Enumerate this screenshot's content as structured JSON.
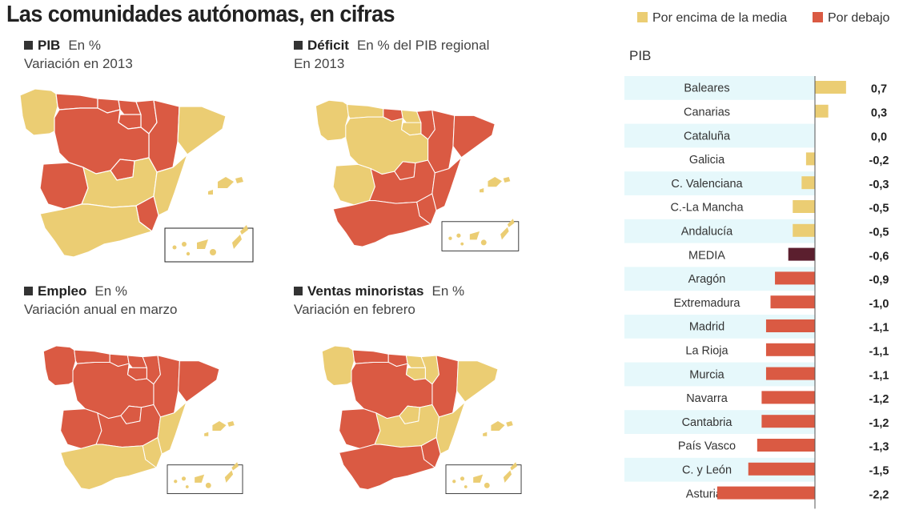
{
  "title": "Las comunidades autónomas, en cifras",
  "legend": {
    "above_label": "Por encima de la media",
    "below_label": "Por debajo",
    "above_color": "#ebcd73",
    "below_color": "#da5a43"
  },
  "panels": [
    {
      "name": "PIB",
      "unit": "En %",
      "subtitle": "Variación en 2013"
    },
    {
      "name": "Déficit",
      "unit": "En % del PIB regional",
      "subtitle": "En 2013"
    },
    {
      "name": "Empleo",
      "unit": "En %",
      "subtitle": "Variación anual en marzo"
    },
    {
      "name": "Ventas minoristas",
      "unit": "En %",
      "subtitle": "Variación en febrero"
    }
  ],
  "chart_data": {
    "type": "bar",
    "orientation": "horizontal",
    "title": "PIB",
    "categories": [
      "Baleares",
      "Canarias",
      "Cataluña",
      "Galicia",
      "C. Valenciana",
      "C.-La Mancha",
      "Andalucía",
      "MEDIA",
      "Aragón",
      "Extremadura",
      "Madrid",
      "La Rioja",
      "Murcia",
      "Navarra",
      "Cantabria",
      "País Vasco",
      "C. y León",
      "Asturias"
    ],
    "values": [
      0.7,
      0.3,
      0.0,
      -0.2,
      -0.3,
      -0.5,
      -0.5,
      -0.6,
      -0.9,
      -1.0,
      -1.1,
      -1.1,
      -1.1,
      -1.2,
      -1.2,
      -1.3,
      -1.5,
      -2.2
    ],
    "value_labels": [
      "0,7",
      "0,3",
      "0,0",
      "-0,2",
      "-0,3",
      "-0,5",
      "-0,5",
      "-0,6",
      "-0,9",
      "-1,0",
      "-1,1",
      "-1,1",
      "-1,1",
      "-1,2",
      "-1,2",
      "-1,3",
      "-1,5",
      "-2,2"
    ],
    "highlight": "MEDIA",
    "media_color": "#5b1f2e",
    "row_stripe_color": "#e6f8fb"
  }
}
